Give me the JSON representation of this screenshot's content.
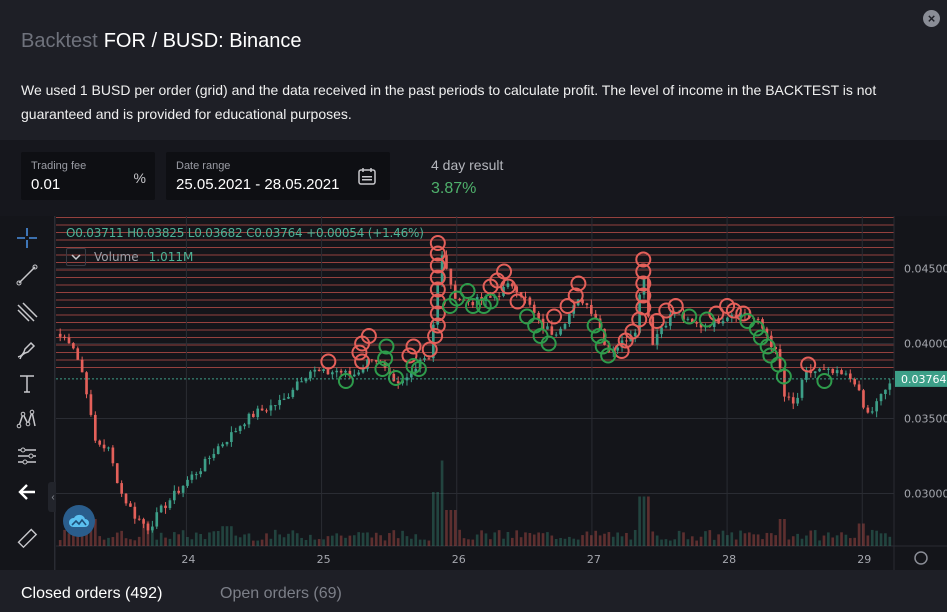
{
  "header": {
    "label": "Backtest",
    "title": "FOR / BUSD: Binance",
    "description": "We used 1 BUSD per order (grid) and the data received in the past periods to calculate profit. The level of income in the BACKTEST is not guaranteed and is provided for educational purposes."
  },
  "params": {
    "fee": {
      "label": "Trading fee",
      "value": "0.01",
      "suffix": "%"
    },
    "range": {
      "label": "Date range",
      "value": "25.05.2021 - 28.05.2021"
    },
    "result": {
      "label": "4 day result",
      "value": "3.87%"
    }
  },
  "legend": {
    "ohlc": "O0.03711 H0.03825 L0.03682 C0.03764 +0.00054 (+1.46%)",
    "volume_label": "Volume",
    "volume_value": "1.011M"
  },
  "tabs": {
    "closed": "Closed orders (492)",
    "open": "Open orders (69)"
  },
  "colors": {
    "up": "#3d9f88",
    "down": "#e4605a",
    "buy_marker": "#2e9b4b",
    "sell_marker": "#e4605a",
    "profit": "#4fb16c",
    "price_label_bg": "#3d9f88"
  },
  "toolbar_icons": [
    "crosshair-icon",
    "trend-line-icon",
    "pitchfork-icon",
    "brush-icon",
    "text-icon",
    "pattern-icon",
    "measure-icon",
    "back-arrow-icon",
    "ruler-icon"
  ],
  "chart_data": {
    "type": "candlestick",
    "x_ticks": [
      "24",
      "25",
      "26",
      "27",
      "28",
      "29"
    ],
    "y_ticks": [
      "0.04500",
      "0.04000",
      "0.03500",
      "0.03000"
    ],
    "ylim": [
      0.0265,
      0.0485
    ],
    "last_price": "0.03764",
    "x_range": [
      23.05,
      29.22
    ],
    "grid_levels": [
      0.0384,
      0.0389,
      0.0394,
      0.0399,
      0.0404,
      0.0409,
      0.0414,
      0.0419,
      0.0424,
      0.0429,
      0.0434,
      0.0439,
      0.0444,
      0.0449,
      0.0454,
      0.0459,
      0.0464,
      0.0469,
      0.0474,
      0.0479,
      0.0484
    ],
    "close_path": [
      [
        23.05,
        0.0405
      ],
      [
        23.15,
        0.0402
      ],
      [
        23.25,
        0.0375
      ],
      [
        23.32,
        0.0335
      ],
      [
        23.42,
        0.033
      ],
      [
        23.52,
        0.03
      ],
      [
        23.62,
        0.0285
      ],
      [
        23.72,
        0.0277
      ],
      [
        23.82,
        0.029
      ],
      [
        23.92,
        0.03
      ],
      [
        24.02,
        0.031
      ],
      [
        24.12,
        0.0318
      ],
      [
        24.22,
        0.033
      ],
      [
        24.32,
        0.0338
      ],
      [
        24.42,
        0.0348
      ],
      [
        24.52,
        0.0354
      ],
      [
        24.62,
        0.0358
      ],
      [
        24.72,
        0.0362
      ],
      [
        24.82,
        0.0375
      ],
      [
        24.92,
        0.0382
      ],
      [
        25.02,
        0.038
      ],
      [
        25.12,
        0.0382
      ],
      [
        25.22,
        0.0378
      ],
      [
        25.3,
        0.0384
      ],
      [
        25.38,
        0.0392
      ],
      [
        25.46,
        0.0383
      ],
      [
        25.55,
        0.037
      ],
      [
        25.65,
        0.0378
      ],
      [
        25.72,
        0.039
      ],
      [
        25.8,
        0.0392
      ],
      [
        25.86,
        0.044
      ],
      [
        25.9,
        0.0462
      ],
      [
        25.96,
        0.0435
      ],
      [
        26.05,
        0.0428
      ],
      [
        26.15,
        0.0428
      ],
      [
        26.25,
        0.043
      ],
      [
        26.33,
        0.0435
      ],
      [
        26.42,
        0.044
      ],
      [
        26.52,
        0.0428
      ],
      [
        26.62,
        0.0412
      ],
      [
        26.72,
        0.0407
      ],
      [
        26.82,
        0.0418
      ],
      [
        26.92,
        0.043
      ],
      [
        27.02,
        0.042
      ],
      [
        27.12,
        0.0395
      ],
      [
        27.22,
        0.04
      ],
      [
        27.32,
        0.041
      ],
      [
        27.38,
        0.045
      ],
      [
        27.44,
        0.04
      ],
      [
        27.52,
        0.0412
      ],
      [
        27.62,
        0.0422
      ],
      [
        27.72,
        0.0413
      ],
      [
        27.82,
        0.0412
      ],
      [
        27.92,
        0.0415
      ],
      [
        28.02,
        0.042
      ],
      [
        28.12,
        0.042
      ],
      [
        28.22,
        0.0415
      ],
      [
        28.3,
        0.0405
      ],
      [
        28.38,
        0.039
      ],
      [
        28.42,
        0.0365
      ],
      [
        28.5,
        0.0358
      ],
      [
        28.58,
        0.038
      ],
      [
        28.68,
        0.0382
      ],
      [
        28.78,
        0.038
      ],
      [
        28.88,
        0.0378
      ],
      [
        28.95,
        0.0375
      ],
      [
        29.0,
        0.0358
      ],
      [
        29.05,
        0.0352
      ],
      [
        29.12,
        0.0362
      ],
      [
        29.22,
        0.0376
      ]
    ],
    "volume_bars": [
      {
        "x": 23.3,
        "v": 0.3
      },
      {
        "x": 23.7,
        "v": 0.28
      },
      {
        "x": 24.3,
        "v": 0.22
      },
      {
        "x": 25.85,
        "v": 0.6
      },
      {
        "x": 25.9,
        "v": 0.95
      },
      {
        "x": 25.95,
        "v": 0.4
      },
      {
        "x": 27.38,
        "v": 0.55
      },
      {
        "x": 28.4,
        "v": 0.3
      },
      {
        "x": 29.0,
        "v": 0.25
      }
    ],
    "buy_markers": [
      [
        25.18,
        0.0375
      ],
      [
        25.45,
        0.0383
      ],
      [
        25.47,
        0.039
      ],
      [
        25.48,
        0.0398
      ],
      [
        25.55,
        0.0377
      ],
      [
        25.68,
        0.0385
      ],
      [
        25.72,
        0.0383
      ],
      [
        25.95,
        0.0425
      ],
      [
        26.0,
        0.043
      ],
      [
        26.08,
        0.0435
      ],
      [
        26.12,
        0.0425
      ],
      [
        26.2,
        0.0425
      ],
      [
        26.25,
        0.0428
      ],
      [
        26.52,
        0.0418
      ],
      [
        26.58,
        0.0412
      ],
      [
        26.62,
        0.0405
      ],
      [
        26.68,
        0.04
      ],
      [
        27.02,
        0.0412
      ],
      [
        27.05,
        0.0405
      ],
      [
        27.08,
        0.0398
      ],
      [
        27.12,
        0.0392
      ],
      [
        27.72,
        0.0418
      ],
      [
        27.85,
        0.0416
      ],
      [
        28.15,
        0.0415
      ],
      [
        28.22,
        0.041
      ],
      [
        28.25,
        0.0404
      ],
      [
        28.3,
        0.0398
      ],
      [
        28.32,
        0.0392
      ],
      [
        28.38,
        0.0386
      ],
      [
        28.42,
        0.0378
      ],
      [
        28.72,
        0.0375
      ]
    ],
    "sell_markers": [
      [
        25.05,
        0.0388
      ],
      [
        25.28,
        0.0394
      ],
      [
        25.3,
        0.04
      ],
      [
        25.35,
        0.0405
      ],
      [
        25.3,
        0.0388
      ],
      [
        25.65,
        0.0392
      ],
      [
        25.68,
        0.0398
      ],
      [
        25.8,
        0.0396
      ],
      [
        25.84,
        0.0405
      ],
      [
        25.86,
        0.0412
      ],
      [
        25.86,
        0.042
      ],
      [
        25.86,
        0.0428
      ],
      [
        25.86,
        0.0436
      ],
      [
        25.86,
        0.0444
      ],
      [
        25.86,
        0.0452
      ],
      [
        25.86,
        0.046
      ],
      [
        25.86,
        0.0467
      ],
      [
        26.25,
        0.0438
      ],
      [
        26.3,
        0.0442
      ],
      [
        26.35,
        0.0448
      ],
      [
        26.38,
        0.0438
      ],
      [
        26.45,
        0.0428
      ],
      [
        26.72,
        0.0418
      ],
      [
        26.82,
        0.0425
      ],
      [
        26.88,
        0.0432
      ],
      [
        26.9,
        0.044
      ],
      [
        27.22,
        0.0395
      ],
      [
        27.25,
        0.0402
      ],
      [
        27.3,
        0.0408
      ],
      [
        27.35,
        0.0416
      ],
      [
        27.38,
        0.0424
      ],
      [
        27.38,
        0.0432
      ],
      [
        27.38,
        0.044
      ],
      [
        27.38,
        0.0448
      ],
      [
        27.38,
        0.0456
      ],
      [
        27.48,
        0.0415
      ],
      [
        27.55,
        0.0422
      ],
      [
        27.62,
        0.0425
      ],
      [
        27.92,
        0.042
      ],
      [
        28.0,
        0.0425
      ],
      [
        28.05,
        0.0422
      ],
      [
        28.12,
        0.042
      ],
      [
        28.6,
        0.0386
      ]
    ]
  }
}
